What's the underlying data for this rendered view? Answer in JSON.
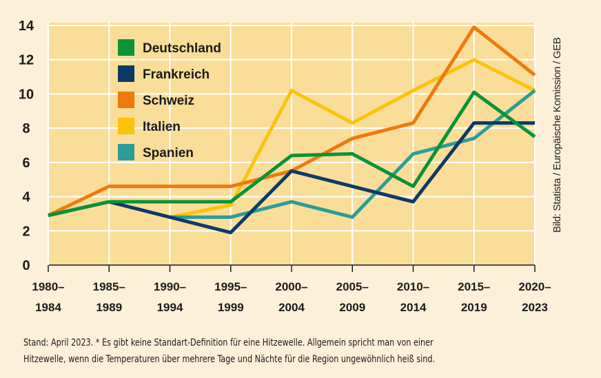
{
  "chart_data": {
    "type": "line",
    "categories": [
      "1980–\n1984",
      "1985–\n1989",
      "1990–\n1994",
      "1995–\n1999",
      "2000–\n2004",
      "2005–\n2009",
      "2010–\n2014",
      "2015–\n2019",
      "2020–\n2023"
    ],
    "ylim": [
      0,
      14
    ],
    "yticks": [
      0,
      2,
      4,
      6,
      8,
      10,
      12,
      14
    ],
    "grid": true,
    "legend_position": "top-left",
    "series": [
      {
        "name": "Deutschland",
        "color": "#0a9339",
        "values": [
          2.9,
          3.7,
          3.7,
          3.7,
          6.4,
          6.5,
          4.6,
          10.1,
          7.5
        ]
      },
      {
        "name": "Frankreich",
        "color": "#0c3a66",
        "values": [
          2.9,
          3.7,
          2.8,
          1.9,
          5.5,
          4.6,
          3.7,
          8.3,
          8.3
        ]
      },
      {
        "name": "Schweiz",
        "color": "#ee7a0b",
        "values": [
          2.9,
          4.6,
          4.6,
          4.6,
          5.5,
          7.4,
          8.3,
          13.9,
          11.1
        ]
      },
      {
        "name": "Italien",
        "color": "#fcc30a",
        "values": [
          null,
          null,
          2.8,
          3.5,
          10.2,
          8.3,
          10.2,
          12.0,
          10.2
        ]
      },
      {
        "name": "Spanien",
        "color": "#2a9d98",
        "values": [
          null,
          null,
          2.8,
          2.8,
          3.7,
          2.8,
          6.5,
          7.4,
          10.2
        ]
      }
    ]
  },
  "source": "Bild: Statista / Europäische Komission / GEB",
  "footnote_line1": "Stand: April 2023. * Es gibt keine Standart-Definition für eine Hitzewelle. Allgemein spricht man von einer",
  "footnote_line2": "Hitzewelle, wenn die Temperaturen über mehrere Tage und Nächte für die Region ungewöhnlich heiß sind.",
  "colors": {
    "plot_background": "#fadd98",
    "page_background": "#fdf0d8"
  }
}
